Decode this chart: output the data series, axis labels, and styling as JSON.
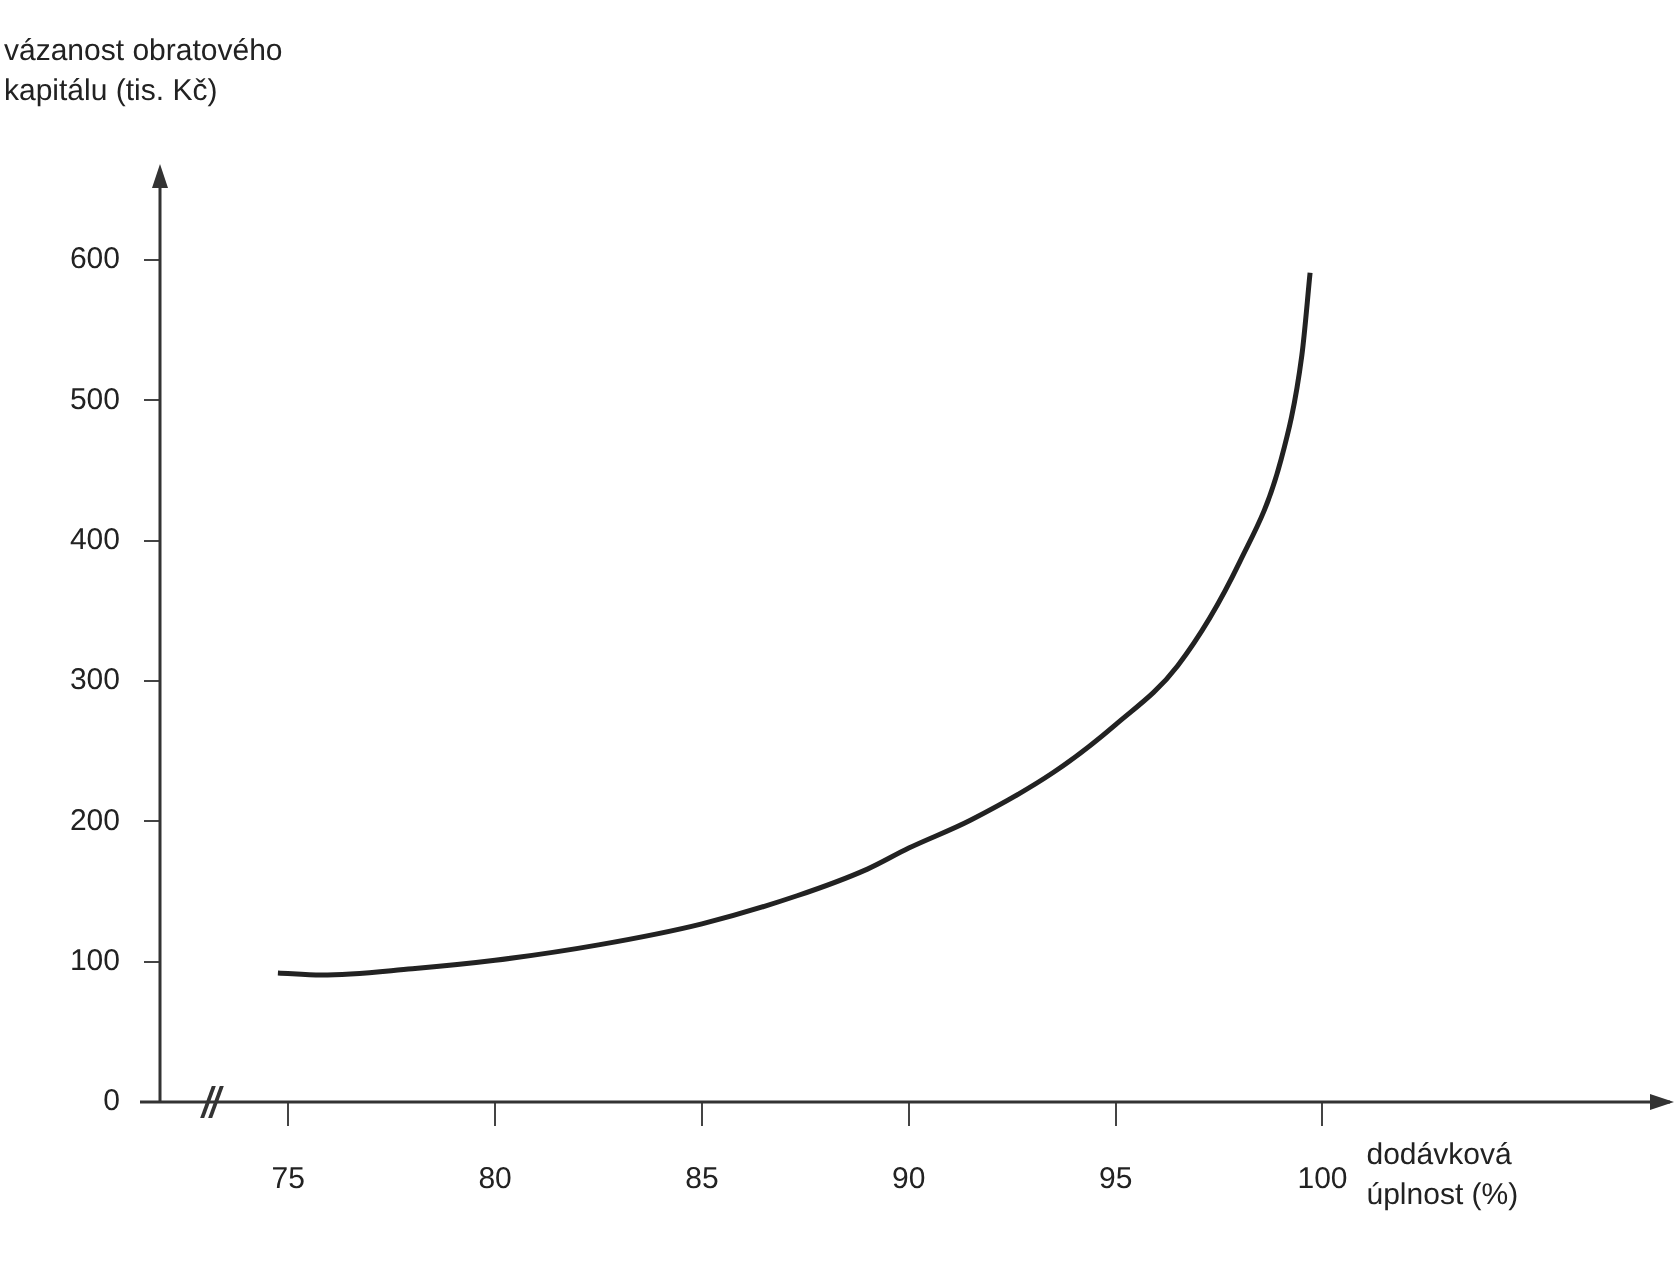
{
  "chart_data": {
    "type": "line",
    "xlabel": "dodávková úplnost (%)",
    "ylabel": "vázanost obratového kapitálu (tis. Kč)",
    "x": [
      74.75,
      75.8,
      78,
      80,
      82.5,
      85,
      87.3,
      89,
      90,
      91.5,
      93.5,
      95,
      96.5,
      98,
      99,
      99.5,
      99.7
    ],
    "values": [
      92,
      90.5,
      95,
      101,
      112,
      127,
      147,
      166,
      181,
      201,
      235,
      269,
      311,
      385,
      458,
      532,
      591
    ],
    "color": "#222222",
    "marker": "none",
    "line_style": "solid",
    "xlim": [
      71.9,
      108.4
    ],
    "xticks": [
      75,
      80,
      85,
      90,
      95,
      100
    ],
    "ylim": [
      0,
      660
    ],
    "yticks": [
      0,
      100,
      200,
      300,
      400,
      500,
      600
    ]
  }
}
